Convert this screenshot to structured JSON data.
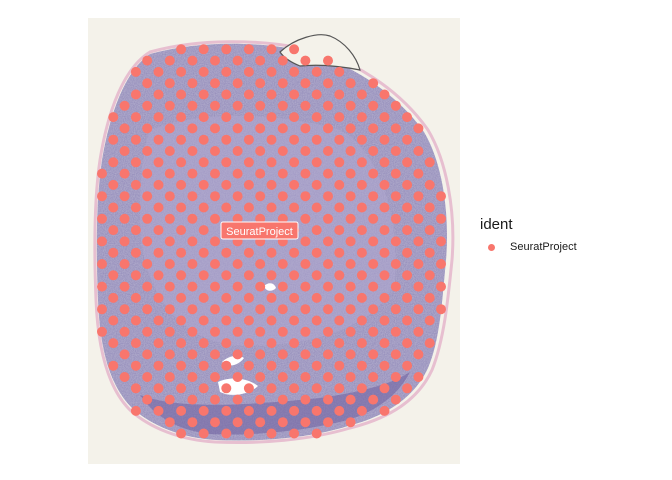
{
  "plot": {
    "cluster_label": "SeuratProject",
    "spot_color": "#F8766D",
    "tissue_colors": {
      "background": "#f4f2ea",
      "tissue": "#8d84b8",
      "tissue_dark": "#6e5f9e",
      "tissue_light": "#b0a8cf",
      "edge_pink": "#e7bfd0"
    }
  },
  "legend": {
    "title": "ident",
    "items": [
      {
        "label": "SeuratProject",
        "color": "#F8766D"
      }
    ]
  }
}
